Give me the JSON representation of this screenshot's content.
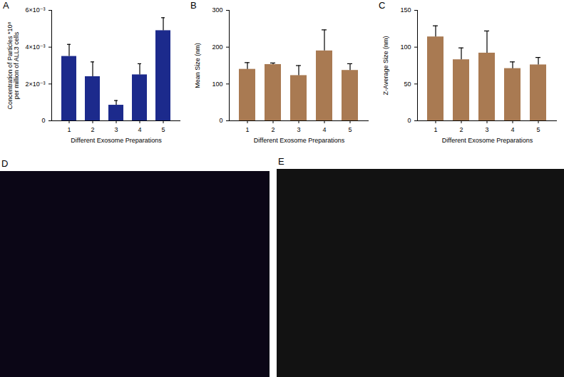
{
  "chart_data": [
    {
      "type": "bar",
      "title": "A",
      "categories": [
        "1",
        "2",
        "3",
        "4",
        "5"
      ],
      "values": [
        0.0035,
        0.0024,
        0.00085,
        0.0025,
        0.0049
      ],
      "errors": [
        0.00065,
        0.0008,
        0.00025,
        0.0006,
        0.0007
      ],
      "color": "#1c2a8c",
      "xlabel": "Different Exosome Preparations",
      "ylabel": [
        "Concentration of Particles *10⁸",
        "per million of ALL3 cells"
      ],
      "ylim": [
        0,
        0.006
      ],
      "yticks": [
        0,
        {
          "value": 0.002,
          "label": "2×10⁻³"
        },
        {
          "value": 0.004,
          "label": "4×10⁻³"
        },
        {
          "value": 0.006,
          "label": "6×10⁻³"
        }
      ]
    },
    {
      "type": "bar",
      "title": "B",
      "categories": [
        "1",
        "2",
        "3",
        "4",
        "5"
      ],
      "values": [
        140,
        153,
        123,
        190,
        137
      ],
      "errors": [
        18,
        4,
        27,
        57,
        18
      ],
      "color": "#a97a52",
      "xlabel": "Different Exosome Preparations",
      "ylabel": [
        "Mean Size (nm)"
      ],
      "ylim": [
        0,
        300
      ],
      "yticks": [
        0,
        100,
        200,
        300
      ]
    },
    {
      "type": "bar",
      "title": "C",
      "categories": [
        "1",
        "2",
        "3",
        "4",
        "5"
      ],
      "values": [
        114,
        83,
        92,
        71,
        76
      ],
      "errors": [
        15,
        16,
        30,
        9,
        10
      ],
      "color": "#a97a52",
      "xlabel": "Different Exosome Preparations",
      "ylabel": [
        "Z-Average Size (nm)"
      ],
      "ylim": [
        0,
        150
      ],
      "yticks": [
        0,
        50,
        100,
        150
      ]
    }
  ],
  "images": [
    {
      "label": "D"
    },
    {
      "label": "E"
    }
  ]
}
